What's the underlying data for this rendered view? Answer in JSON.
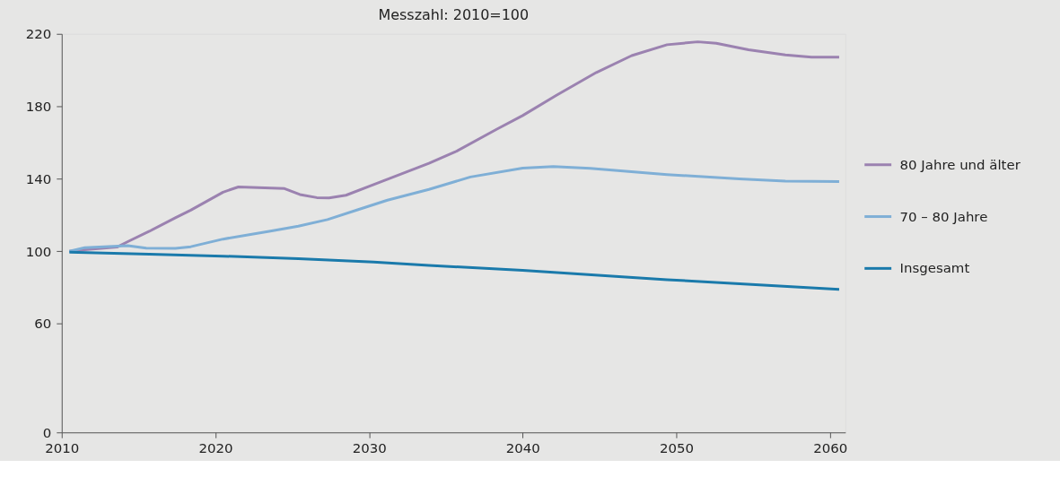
{
  "chart_data": {
    "type": "line",
    "title": "Messzahl: 2010=100",
    "xlim": [
      2010,
      2061
    ],
    "xticks": [
      2010,
      2020,
      2030,
      2040,
      2050,
      2060
    ],
    "ylim": [
      0,
      220
    ],
    "yticks": [
      0,
      60,
      100,
      140,
      180,
      220
    ],
    "grid": false,
    "legend": "right",
    "line_style": "solid",
    "marker": "none",
    "series": [
      {
        "name": "80 Jahre und älter",
        "color": "#9b82b0",
        "x": [
          2010.5,
          2011.5,
          2013.6,
          2014.3,
          2015.7,
          2017.4,
          2018.4,
          2020.5,
          2021.5,
          2024.5,
          2025.5,
          2026.6,
          2027.4,
          2028.5,
          2030.3,
          2033.9,
          2035.6,
          2038.3,
          2040.0,
          2042.2,
          2044.8,
          2047.1,
          2049.4,
          2051.4,
          2052.6,
          2054.7,
          2057.1,
          2058.8,
          2060.6
        ],
        "values": [
          100,
          100.8,
          102.3,
          105.3,
          111,
          118.5,
          122.7,
          132.6,
          135.5,
          134.6,
          131.3,
          129.6,
          129.4,
          130.9,
          136.8,
          148.5,
          154.8,
          167.3,
          174.9,
          186.1,
          198.7,
          208,
          214,
          215.6,
          214.8,
          211.2,
          208.4,
          207.1,
          207.1
        ]
      },
      {
        "name": "70 – 80 Jahre",
        "color": "#7fafd6",
        "x": [
          2010.5,
          2011.5,
          2014.3,
          2015.5,
          2017.4,
          2018.4,
          2020.5,
          2023.5,
          2025.4,
          2027.3,
          2029.3,
          2031.2,
          2033.9,
          2036.6,
          2040.0,
          2042.0,
          2044.4,
          2049.4,
          2054.1,
          2057.1,
          2060.6
        ],
        "values": [
          100,
          102,
          103.1,
          101.7,
          101.6,
          102.5,
          106.7,
          111,
          113.8,
          117.5,
          123,
          128.2,
          134.1,
          141,
          145.9,
          146.8,
          145.7,
          142.3,
          139.9,
          138.7,
          138.5
        ]
      },
      {
        "name": "Insgesamt",
        "color": "#1a7aab",
        "x": [
          2010.5,
          2015.7,
          2020.5,
          2025.4,
          2030.3,
          2033.9,
          2040.0,
          2049.4,
          2060.6
        ],
        "values": [
          99.5,
          98.4,
          97.3,
          95.9,
          94,
          92.2,
          89.4,
          84.3,
          78.9
        ]
      }
    ]
  }
}
